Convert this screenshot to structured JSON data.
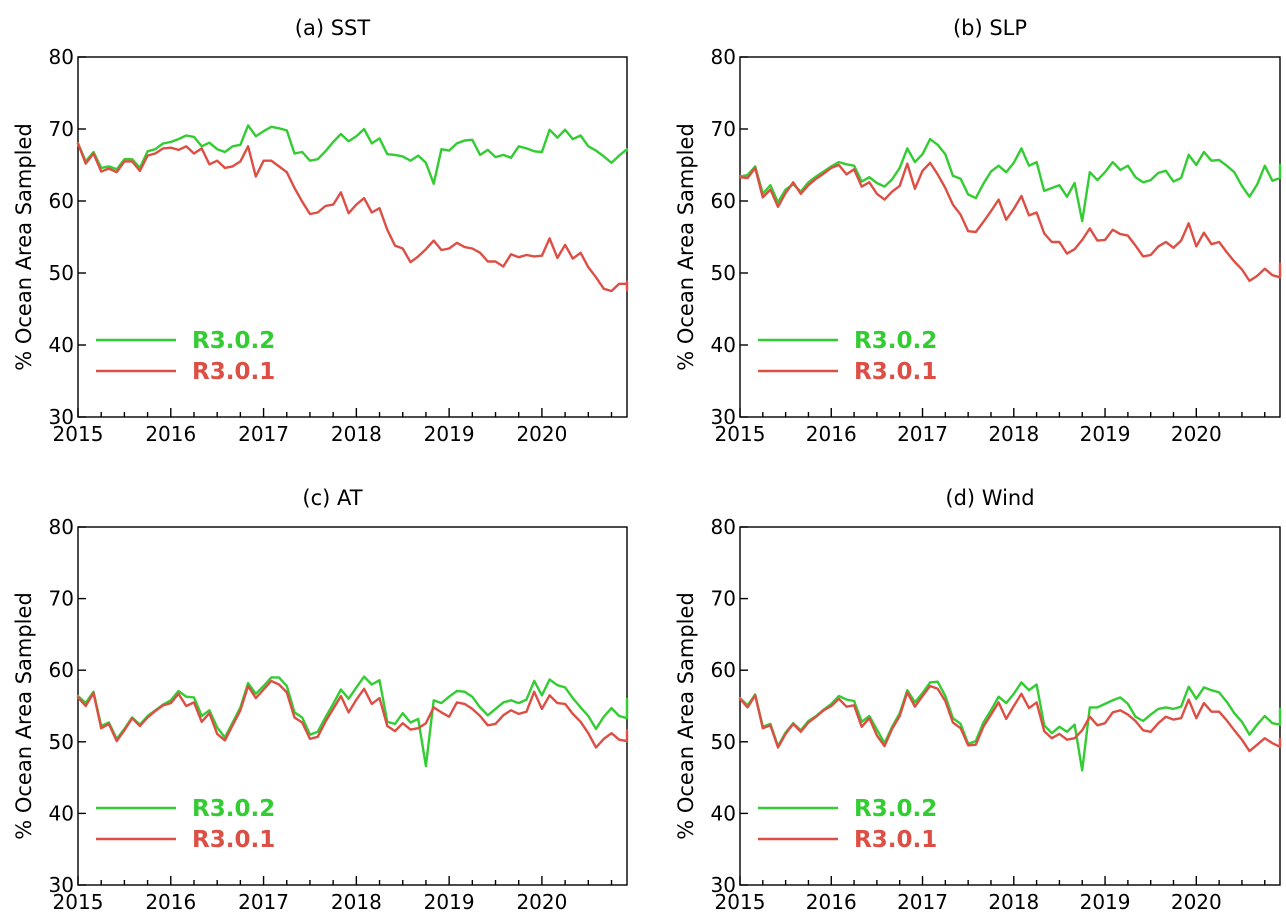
{
  "colors": {
    "R3.0.2": "#33cc33",
    "R3.0.1": "#dd4e45"
  },
  "chart_data": [
    {
      "type": "line",
      "title": "(a)  SST",
      "ylabel": "% Ocean Area Sampled",
      "xlabel": "",
      "xlim": [
        2015,
        2020.917
      ],
      "ylim": [
        30,
        80
      ],
      "xticks": [
        "2015",
        "2016",
        "2017",
        "2018",
        "2019",
        "2020"
      ],
      "yticks": [
        "30",
        "40",
        "50",
        "60",
        "70",
        "80"
      ],
      "legend": {
        "placement": "bottom-left"
      },
      "x_start": "2015-01",
      "x_step": "monthly",
      "series": [
        {
          "name": "R3.0.2",
          "color": "#33cc33",
          "values": [
            68.0,
            65.5,
            66.8,
            64.6,
            64.8,
            64.4,
            65.8,
            65.8,
            64.6,
            66.9,
            67.2,
            68.0,
            68.2,
            68.6,
            69.1,
            68.9,
            67.6,
            68.1,
            67.2,
            66.8,
            67.6,
            67.8,
            70.5,
            69.0,
            69.7,
            70.3,
            70.1,
            69.8,
            66.6,
            66.8,
            65.6,
            65.8,
            66.9,
            68.2,
            69.3,
            68.3,
            69.0,
            70.0,
            68.0,
            68.7,
            66.5,
            66.4,
            66.2,
            65.6,
            66.3,
            65.3,
            62.4,
            67.2,
            67.0,
            68.0,
            68.4,
            68.5,
            66.4,
            67.1,
            66.1,
            66.4,
            66.0,
            67.6,
            67.3,
            66.9,
            66.8,
            69.9,
            68.8,
            69.9,
            68.6,
            69.1,
            67.6,
            67.0,
            66.2,
            65.3,
            66.3,
            67.2,
            67.0,
            67.0,
            67.0
          ]
        },
        {
          "name": "R3.0.1",
          "color": "#dd4e45",
          "values": [
            68.0,
            65.2,
            66.6,
            64.1,
            64.5,
            64.0,
            65.5,
            65.5,
            64.2,
            66.3,
            66.6,
            67.3,
            67.4,
            67.1,
            67.6,
            66.6,
            67.3,
            65.1,
            65.6,
            64.6,
            64.8,
            65.5,
            67.6,
            63.4,
            65.6,
            65.6,
            64.8,
            64.0,
            61.8,
            59.9,
            58.2,
            58.4,
            59.3,
            59.5,
            61.2,
            58.3,
            59.5,
            60.4,
            58.4,
            59.0,
            56.0,
            53.8,
            53.4,
            51.5,
            52.3,
            53.3,
            54.5,
            53.2,
            53.4,
            54.2,
            53.6,
            53.4,
            52.8,
            51.6,
            51.6,
            50.9,
            52.6,
            52.2,
            52.5,
            52.3,
            52.4,
            54.8,
            52.1,
            53.9,
            52.0,
            52.8,
            50.8,
            49.4,
            47.8,
            47.5,
            48.5,
            48.5,
            47.6,
            48.7,
            48.8
          ]
        }
      ]
    },
    {
      "type": "line",
      "title": "(b)  SLP",
      "ylabel": "% Ocean Area Sampled",
      "xlabel": "",
      "xlim": [
        2015,
        2020.917
      ],
      "ylim": [
        30,
        80
      ],
      "xticks": [
        "2015",
        "2016",
        "2017",
        "2018",
        "2019",
        "2020"
      ],
      "yticks": [
        "30",
        "40",
        "50",
        "60",
        "70",
        "80"
      ],
      "legend": {
        "placement": "bottom-left"
      },
      "x_start": "2015-01",
      "x_step": "monthly",
      "series": [
        {
          "name": "R3.0.2",
          "color": "#33cc33",
          "values": [
            63.4,
            63.6,
            64.8,
            61.0,
            62.2,
            59.8,
            61.6,
            62.3,
            61.3,
            62.6,
            63.4,
            64.1,
            64.8,
            65.4,
            65.1,
            64.9,
            62.7,
            63.3,
            62.5,
            62.0,
            63.0,
            64.6,
            67.3,
            65.4,
            66.5,
            68.6,
            67.8,
            66.5,
            63.5,
            63.1,
            60.9,
            60.4,
            62.4,
            64.1,
            64.9,
            64.0,
            65.3,
            67.3,
            64.9,
            65.4,
            61.4,
            61.8,
            62.2,
            60.6,
            62.5,
            57.2,
            64.0,
            62.9,
            64.0,
            65.4,
            64.3,
            64.9,
            63.3,
            62.6,
            62.9,
            63.9,
            64.2,
            62.7,
            63.2,
            66.4,
            65.0,
            66.8,
            65.6,
            65.7,
            64.9,
            64.0,
            62.1,
            60.6,
            62.3,
            64.9,
            62.8,
            63.2,
            64.8,
            64.9,
            65.0
          ]
        },
        {
          "name": "R3.0.1",
          "color": "#dd4e45",
          "values": [
            63.3,
            63.2,
            64.6,
            60.5,
            61.6,
            59.2,
            61.1,
            62.6,
            61.0,
            62.2,
            63.1,
            63.8,
            64.6,
            65.0,
            63.7,
            64.4,
            62.0,
            62.6,
            61.0,
            60.2,
            61.3,
            62.1,
            65.2,
            61.7,
            64.2,
            65.3,
            63.7,
            61.8,
            59.5,
            58.1,
            55.8,
            55.7,
            57.1,
            58.6,
            60.2,
            57.4,
            58.9,
            60.7,
            58.0,
            58.4,
            55.5,
            54.3,
            54.3,
            52.7,
            53.3,
            54.6,
            56.2,
            54.5,
            54.6,
            56.0,
            55.4,
            55.2,
            53.8,
            52.3,
            52.5,
            53.7,
            54.3,
            53.5,
            54.5,
            56.9,
            53.7,
            55.6,
            54.0,
            54.3,
            52.9,
            51.6,
            50.5,
            48.9,
            49.6,
            50.6,
            49.7,
            49.4,
            51.2,
            51.3,
            51.0
          ]
        }
      ]
    },
    {
      "type": "line",
      "title": "(c)  AT",
      "ylabel": "% Ocean Area Sampled",
      "xlabel": "",
      "xlim": [
        2015,
        2020.917
      ],
      "ylim": [
        30,
        80
      ],
      "xticks": [
        "2015",
        "2016",
        "2017",
        "2018",
        "2019",
        "2020"
      ],
      "yticks": [
        "30",
        "40",
        "50",
        "60",
        "70",
        "80"
      ],
      "legend": {
        "placement": "bottom-left"
      },
      "x_start": "2015-01",
      "x_step": "monthly",
      "series": [
        {
          "name": "R3.0.2",
          "color": "#33cc33",
          "values": [
            56.4,
            55.4,
            57.0,
            52.2,
            52.7,
            50.4,
            51.8,
            53.4,
            52.4,
            53.6,
            54.4,
            55.2,
            55.8,
            57.1,
            56.3,
            56.2,
            53.6,
            54.4,
            52.0,
            50.6,
            52.7,
            54.8,
            58.2,
            56.7,
            57.8,
            59.0,
            59.0,
            57.8,
            54.1,
            53.4,
            51.0,
            51.4,
            53.4,
            55.3,
            57.3,
            56.0,
            57.6,
            59.1,
            58.0,
            58.6,
            52.8,
            52.5,
            54.0,
            52.7,
            53.2,
            46.6,
            55.8,
            55.4,
            56.3,
            57.1,
            57.0,
            56.3,
            54.8,
            53.7,
            54.6,
            55.5,
            55.8,
            55.4,
            55.9,
            58.5,
            56.5,
            58.7,
            57.9,
            57.6,
            56.1,
            54.8,
            53.6,
            51.8,
            53.5,
            54.7,
            53.6,
            53.3,
            56.0,
            56.0,
            56.0
          ]
        },
        {
          "name": "R3.0.1",
          "color": "#dd4e45",
          "values": [
            56.2,
            55.0,
            56.8,
            51.9,
            52.5,
            50.1,
            51.6,
            53.3,
            52.2,
            53.4,
            54.3,
            55.1,
            55.4,
            56.7,
            55.0,
            55.5,
            52.8,
            54.0,
            51.1,
            50.2,
            52.3,
            54.4,
            57.8,
            56.1,
            57.3,
            58.5,
            58.0,
            56.9,
            53.4,
            52.7,
            50.4,
            50.7,
            52.8,
            54.6,
            56.4,
            54.1,
            55.9,
            57.4,
            55.3,
            56.1,
            52.2,
            51.5,
            52.6,
            51.7,
            51.9,
            52.6,
            54.8,
            54.1,
            53.5,
            55.5,
            55.3,
            54.6,
            53.6,
            52.3,
            52.5,
            53.7,
            54.4,
            53.9,
            54.2,
            57.0,
            54.6,
            56.5,
            55.4,
            55.3,
            53.9,
            52.8,
            51.2,
            49.2,
            50.4,
            51.2,
            50.3,
            50.1,
            51.6,
            51.6,
            51.6
          ]
        }
      ]
    },
    {
      "type": "line",
      "title": "(d)  Wind",
      "ylabel": "% Ocean Area Sampled",
      "xlabel": "",
      "xlim": [
        2015,
        2020.917
      ],
      "ylim": [
        30,
        80
      ],
      "xticks": [
        "2015",
        "2016",
        "2017",
        "2018",
        "2019",
        "2020"
      ],
      "yticks": [
        "30",
        "40",
        "50",
        "60",
        "70",
        "80"
      ],
      "legend": {
        "placement": "bottom-left"
      },
      "x_start": "2015-01",
      "x_step": "monthly",
      "series": [
        {
          "name": "R3.0.2",
          "color": "#33cc33",
          "values": [
            56.1,
            55.1,
            56.6,
            52.1,
            52.5,
            49.4,
            51.3,
            52.6,
            51.6,
            52.9,
            53.6,
            54.5,
            55.3,
            56.4,
            55.9,
            55.7,
            52.8,
            53.6,
            51.7,
            49.8,
            52.1,
            54.0,
            57.2,
            55.5,
            56.8,
            58.3,
            58.4,
            56.4,
            53.3,
            52.5,
            49.7,
            50.1,
            52.7,
            54.4,
            56.3,
            55.4,
            56.7,
            58.3,
            57.2,
            58.0,
            52.3,
            51.2,
            52.1,
            51.4,
            52.4,
            46.0,
            54.8,
            54.8,
            55.3,
            55.8,
            56.2,
            55.3,
            53.5,
            52.9,
            53.8,
            54.6,
            54.8,
            54.6,
            54.9,
            57.7,
            56.0,
            57.6,
            57.2,
            56.9,
            55.6,
            54.0,
            52.8,
            51.0,
            52.4,
            53.6,
            52.6,
            52.4,
            54.6,
            54.6,
            54.6
          ]
        },
        {
          "name": "R3.0.1",
          "color": "#dd4e45",
          "values": [
            56.0,
            54.8,
            56.5,
            51.9,
            52.3,
            49.2,
            51.1,
            52.5,
            51.4,
            52.7,
            53.5,
            54.4,
            55.0,
            56.0,
            54.9,
            55.1,
            52.1,
            53.3,
            50.9,
            49.4,
            51.8,
            53.6,
            56.9,
            54.9,
            56.4,
            57.8,
            57.4,
            55.7,
            52.7,
            51.9,
            49.5,
            49.6,
            52.1,
            53.8,
            55.5,
            53.2,
            55.0,
            56.7,
            54.7,
            55.5,
            51.5,
            50.5,
            51.1,
            50.3,
            50.5,
            51.6,
            53.5,
            52.3,
            52.6,
            54.1,
            54.4,
            53.8,
            52.9,
            51.6,
            51.4,
            52.6,
            53.5,
            53.1,
            53.3,
            55.9,
            53.3,
            55.4,
            54.2,
            54.2,
            53.0,
            51.6,
            50.3,
            48.7,
            49.6,
            50.5,
            49.8,
            49.3,
            50.4,
            50.4,
            50.4
          ]
        }
      ]
    }
  ]
}
